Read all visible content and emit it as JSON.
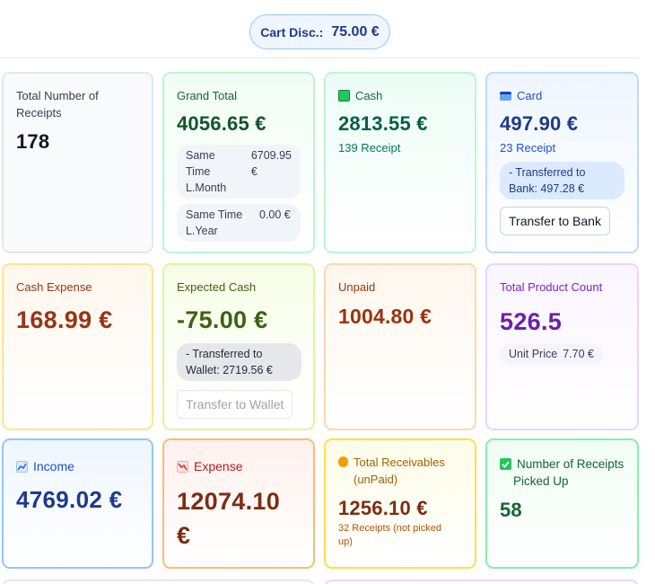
{
  "cart_discount": {
    "label": "Cart Disc.:",
    "value": "75.00 €"
  },
  "colors": {
    "blue_dark": "#1e3a8a",
    "green_dark": "#166534",
    "orange_dark": "#9a3412",
    "purple_dark": "#6b21a8",
    "olive_dark": "#3f6212"
  },
  "receipts": {
    "title": "Total Number of Receipts",
    "value": "178"
  },
  "grand_total": {
    "title": "Grand Total",
    "value": "4056.65 €",
    "last_month": {
      "label": "Same Time L.Month",
      "value": "6709.95 €"
    },
    "last_year": {
      "label": "Same Time L.Year",
      "value": "0.00 €"
    }
  },
  "cash": {
    "icon": "money-icon",
    "title": "Cash",
    "value": "2813.55 €",
    "receipts": "139 Receipt"
  },
  "card": {
    "icon": "credit-card-icon",
    "title": "Card",
    "value": "497.90 €",
    "receipts": "23 Receipt",
    "transferred": "- Transferred to Bank: 497.28 €",
    "button": "Transfer to Bank"
  },
  "cash_expense": {
    "title": "Cash Expense",
    "value": "168.99 €"
  },
  "expected_cash": {
    "title": "Expected Cash",
    "value": "-75.00 €",
    "transferred": "- Transferred to Wallet: 2719.56 €",
    "button": "Transfer to Wallet"
  },
  "unpaid": {
    "title": "Unpaid",
    "value": "1004.80 €"
  },
  "product_count": {
    "title": "Total Product Count",
    "value": "526.5",
    "unit_price_label": "Unit Price",
    "unit_price": "7.70 €"
  },
  "income": {
    "icon": "chart-up-icon",
    "title": "Income",
    "value": "4769.02 €"
  },
  "expense": {
    "icon": "chart-down-icon",
    "title": "Expense",
    "value": "12074.10 €"
  },
  "receivables": {
    "icon": "money-bag-icon",
    "title": "Total Receivables (unPaid)",
    "value": "1256.10 €",
    "note": "32 Receipts (not picked up)"
  },
  "picked_up": {
    "icon": "check-box-icon",
    "title": "Number of Receipts Picked Up",
    "value": "58"
  }
}
